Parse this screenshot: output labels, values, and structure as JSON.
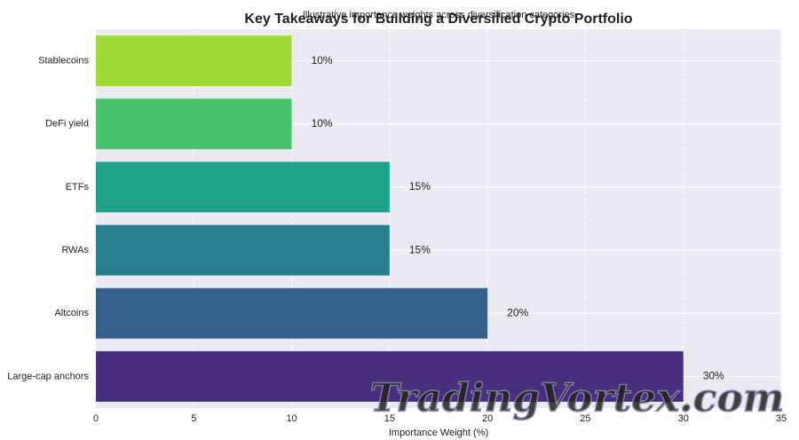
{
  "chart_data": {
    "type": "barh",
    "title": "Key Takeaways for Building a Diversified Crypto Portfolio",
    "subtitle": "Illustrative importance weights across diversification categories",
    "xlabel": "Importance Weight (%)",
    "watermark": "TradingVortex.com",
    "categories": [
      "Large-cap anchors",
      "Altcoins",
      "RWAs",
      "ETFs",
      "DeFi yield",
      "Stablecoins"
    ],
    "values": [
      30,
      20,
      15,
      15,
      10,
      10
    ],
    "value_labels": [
      "30%",
      "20%",
      "15%",
      "15%",
      "10%",
      "10%"
    ],
    "colors": [
      "#472f7d",
      "#355f8d",
      "#277f8e",
      "#1fa187",
      "#4ac16d",
      "#a0da39"
    ],
    "xlim": [
      0,
      35
    ],
    "xticks": [
      0,
      5,
      10,
      15,
      20,
      25,
      30,
      35
    ],
    "grid": true
  }
}
